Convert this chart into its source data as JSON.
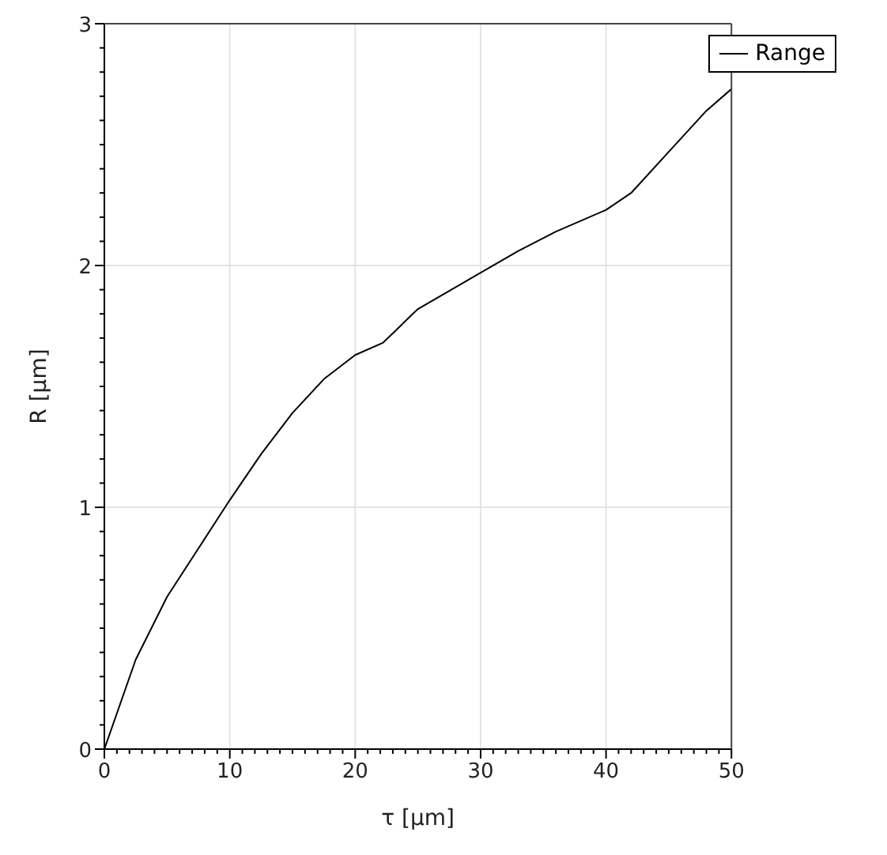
{
  "chart_data": {
    "type": "line",
    "xlabel": "τ [µm]",
    "ylabel": "R [µm]",
    "x": [
      0,
      2.5,
      5,
      7.5,
      10,
      12.5,
      15,
      17.5,
      20,
      22.2,
      25,
      30,
      33,
      36,
      40,
      42,
      45,
      48,
      50
    ],
    "series": [
      {
        "name": "Range",
        "color": "#000000",
        "values": [
          0,
          0.37,
          0.63,
          0.83,
          1.03,
          1.22,
          1.39,
          1.53,
          1.63,
          1.68,
          1.82,
          1.97,
          2.06,
          2.14,
          2.23,
          2.3,
          2.47,
          2.64,
          2.73
        ]
      }
    ],
    "xlim": [
      0,
      50
    ],
    "ylim": [
      0,
      3
    ],
    "xticks": [
      0,
      {
        "value": 1,
        "label": null
      },
      {
        "value": 2,
        "label": null
      },
      {
        "value": 3,
        "label": null
      },
      {
        "value": 4,
        "label": null
      },
      {
        "value": 5,
        "label": null
      },
      {
        "value": 6,
        "label": null
      },
      {
        "value": 7,
        "label": null
      },
      {
        "value": 8,
        "label": null
      },
      {
        "value": 9,
        "label": null
      },
      10,
      {
        "value": 11,
        "label": null
      },
      {
        "value": 12,
        "label": null
      },
      {
        "value": 13,
        "label": null
      },
      {
        "value": 14,
        "label": null
      },
      {
        "value": 15,
        "label": null
      },
      {
        "value": 16,
        "label": null
      },
      {
        "value": 17,
        "label": null
      },
      {
        "value": 18,
        "label": null
      },
      {
        "value": 19,
        "label": null
      },
      20,
      {
        "value": 21,
        "label": null
      },
      {
        "value": 22,
        "label": null
      },
      {
        "value": 23,
        "label": null
      },
      {
        "value": 24,
        "label": null
      },
      {
        "value": 25,
        "label": null
      },
      {
        "value": 26,
        "label": null
      },
      {
        "value": 27,
        "label": null
      },
      {
        "value": 28,
        "label": null
      },
      {
        "value": 29,
        "label": null
      },
      30,
      {
        "value": 31,
        "label": null
      },
      {
        "value": 32,
        "label": null
      },
      {
        "value": 33,
        "label": null
      },
      {
        "value": 34,
        "label": null
      },
      {
        "value": 35,
        "label": null
      },
      {
        "value": 36,
        "label": null
      },
      {
        "value": 37,
        "label": null
      },
      {
        "value": 38,
        "label": null
      },
      {
        "value": 39,
        "label": null
      },
      40,
      {
        "value": 41,
        "label": null
      },
      {
        "value": 42,
        "label": null
      },
      {
        "value": 43,
        "label": null
      },
      {
        "value": 44,
        "label": null
      },
      {
        "value": 45,
        "label": null
      },
      {
        "value": 46,
        "label": null
      },
      {
        "value": 47,
        "label": null
      },
      {
        "value": 48,
        "label": null
      },
      {
        "value": 49,
        "label": null
      },
      50
    ],
    "yticks": [
      0,
      {
        "value": 0.1,
        "label": null
      },
      {
        "value": 0.2,
        "label": null
      },
      {
        "value": 0.3,
        "label": null
      },
      {
        "value": 0.4,
        "label": null
      },
      {
        "value": 0.5,
        "label": null
      },
      {
        "value": 0.6,
        "label": null
      },
      {
        "value": 0.7,
        "label": null
      },
      {
        "value": 0.8,
        "label": null
      },
      {
        "value": 0.9,
        "label": null
      },
      1,
      {
        "value": 1.1,
        "label": null
      },
      {
        "value": 1.2,
        "label": null
      },
      {
        "value": 1.3,
        "label": null
      },
      {
        "value": 1.4,
        "label": null
      },
      {
        "value": 1.5,
        "label": null
      },
      {
        "value": 1.6,
        "label": null
      },
      {
        "value": 1.7,
        "label": null
      },
      {
        "value": 1.8,
        "label": null
      },
      {
        "value": 1.9,
        "label": null
      },
      2,
      {
        "value": 2.1,
        "label": null
      },
      {
        "value": 2.2,
        "label": null
      },
      {
        "value": 2.3,
        "label": null
      },
      {
        "value": 2.4,
        "label": null
      },
      {
        "value": 2.5,
        "label": null
      },
      {
        "value": 2.6,
        "label": null
      },
      {
        "value": 2.7,
        "label": null
      },
      {
        "value": 2.8,
        "label": null
      },
      {
        "value": 2.9,
        "label": null
      },
      3
    ],
    "grid": true,
    "legend": "top right",
    "marker": "none",
    "line_style": "solid"
  }
}
